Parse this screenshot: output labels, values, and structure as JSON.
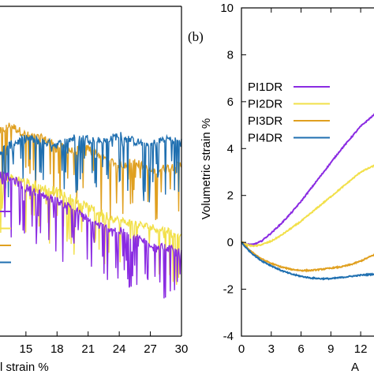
{
  "chart_data": [
    {
      "panel": "left (partially visible)",
      "type": "line",
      "xlabel": "l strain %",
      "ylabel": "",
      "xlim": [
        12.5,
        30
      ],
      "ylim": [
        0,
        10
      ],
      "x_ticks": [
        "15",
        "18",
        "21",
        "24",
        "27",
        "30"
      ],
      "legend_samples": [
        "#8a2be2",
        "#f2e04a",
        "#e0a020",
        "#1f6fb0"
      ],
      "series": [
        {
          "color": "#e0a020",
          "x": [
            12.5,
            13.5,
            15,
            16.5,
            18,
            19.5,
            21,
            22.5,
            24,
            25.5,
            27,
            28.5,
            30
          ],
          "y": [
            6.2,
            6.4,
            6.1,
            6.0,
            5.8,
            5.6,
            5.7,
            5.4,
            5.2,
            5.3,
            5.0,
            5.1,
            5.2
          ]
        },
        {
          "color": "#1f6fb0",
          "x": [
            12.5,
            13.5,
            15,
            16.5,
            18,
            19.5,
            21,
            22.5,
            24,
            25.5,
            27,
            28.5,
            30
          ],
          "y": [
            5.6,
            5.8,
            6.0,
            5.9,
            5.8,
            6.0,
            6.0,
            5.9,
            6.1,
            5.9,
            5.8,
            6.0,
            5.9
          ]
        },
        {
          "color": "#f2e04a",
          "x": [
            12.5,
            13.5,
            15,
            16.5,
            18,
            19.5,
            21,
            22.5,
            24,
            25.5,
            27,
            28.5,
            30
          ],
          "y": [
            4.8,
            4.8,
            4.7,
            4.5,
            4.4,
            4.2,
            3.9,
            3.7,
            3.5,
            3.4,
            3.3,
            3.2,
            3.1
          ]
        },
        {
          "color": "#8a2be2",
          "x": [
            12.5,
            13.5,
            15,
            16.5,
            18,
            19.5,
            21,
            22.5,
            24,
            25.5,
            27,
            28.5,
            30
          ],
          "y": [
            4.9,
            4.8,
            4.5,
            4.3,
            4.1,
            3.9,
            3.5,
            3.3,
            3.2,
            3.0,
            2.8,
            2.7,
            2.5
          ]
        }
      ]
    },
    {
      "panel_label": "(b)",
      "type": "line",
      "xlabel": "A",
      "ylabel": "Volumetric strain %",
      "xlim": [
        0,
        13.5
      ],
      "ylim": [
        -4,
        10
      ],
      "x_ticks": [
        "0",
        "3",
        "6",
        "9",
        "12"
      ],
      "y_ticks": [
        "-4",
        "-2",
        "0",
        "2",
        "4",
        "6",
        "8",
        "10"
      ],
      "legend": [
        {
          "label": "PI1DR",
          "color": "#8a2be2"
        },
        {
          "label": "PI2DR",
          "color": "#f2e04a"
        },
        {
          "label": "PI3DR",
          "color": "#e0a020"
        },
        {
          "label": "PI4DR",
          "color": "#1f6fb0"
        }
      ],
      "series": [
        {
          "name": "PI1DR",
          "color": "#8a2be2",
          "x": [
            0,
            0.5,
            1,
            1.5,
            2,
            3,
            4,
            5,
            6,
            7,
            8,
            9,
            10,
            11,
            12,
            13.5
          ],
          "y": [
            0,
            -0.08,
            -0.1,
            -0.05,
            0.05,
            0.4,
            0.8,
            1.25,
            1.75,
            2.3,
            2.85,
            3.4,
            3.95,
            4.45,
            4.95,
            5.5
          ]
        },
        {
          "name": "PI2DR",
          "color": "#f2e04a",
          "x": [
            0,
            0.5,
            1,
            1.5,
            2,
            3,
            4,
            5,
            6,
            7,
            8,
            9,
            10,
            11,
            12,
            13.5
          ],
          "y": [
            0,
            -0.1,
            -0.15,
            -0.15,
            -0.1,
            0.05,
            0.3,
            0.6,
            0.9,
            1.25,
            1.6,
            1.95,
            2.3,
            2.65,
            3.0,
            3.3
          ]
        },
        {
          "name": "PI3DR",
          "color": "#e0a020",
          "x": [
            0,
            0.5,
            1,
            1.5,
            2,
            3,
            4,
            5,
            6,
            7,
            8,
            9,
            10,
            11,
            12,
            13.5
          ],
          "y": [
            0,
            -0.2,
            -0.4,
            -0.55,
            -0.7,
            -0.9,
            -1.05,
            -1.15,
            -1.2,
            -1.2,
            -1.15,
            -1.1,
            -1.05,
            -0.95,
            -0.8,
            -0.5
          ]
        },
        {
          "name": "PI4DR",
          "color": "#1f6fb0",
          "x": [
            0,
            0.5,
            1,
            1.5,
            2,
            3,
            4,
            5,
            6,
            7,
            8,
            9,
            10,
            11,
            12,
            13.5
          ],
          "y": [
            0,
            -0.25,
            -0.45,
            -0.62,
            -0.78,
            -1.0,
            -1.2,
            -1.35,
            -1.45,
            -1.52,
            -1.55,
            -1.55,
            -1.5,
            -1.45,
            -1.4,
            -1.35
          ]
        }
      ]
    }
  ]
}
